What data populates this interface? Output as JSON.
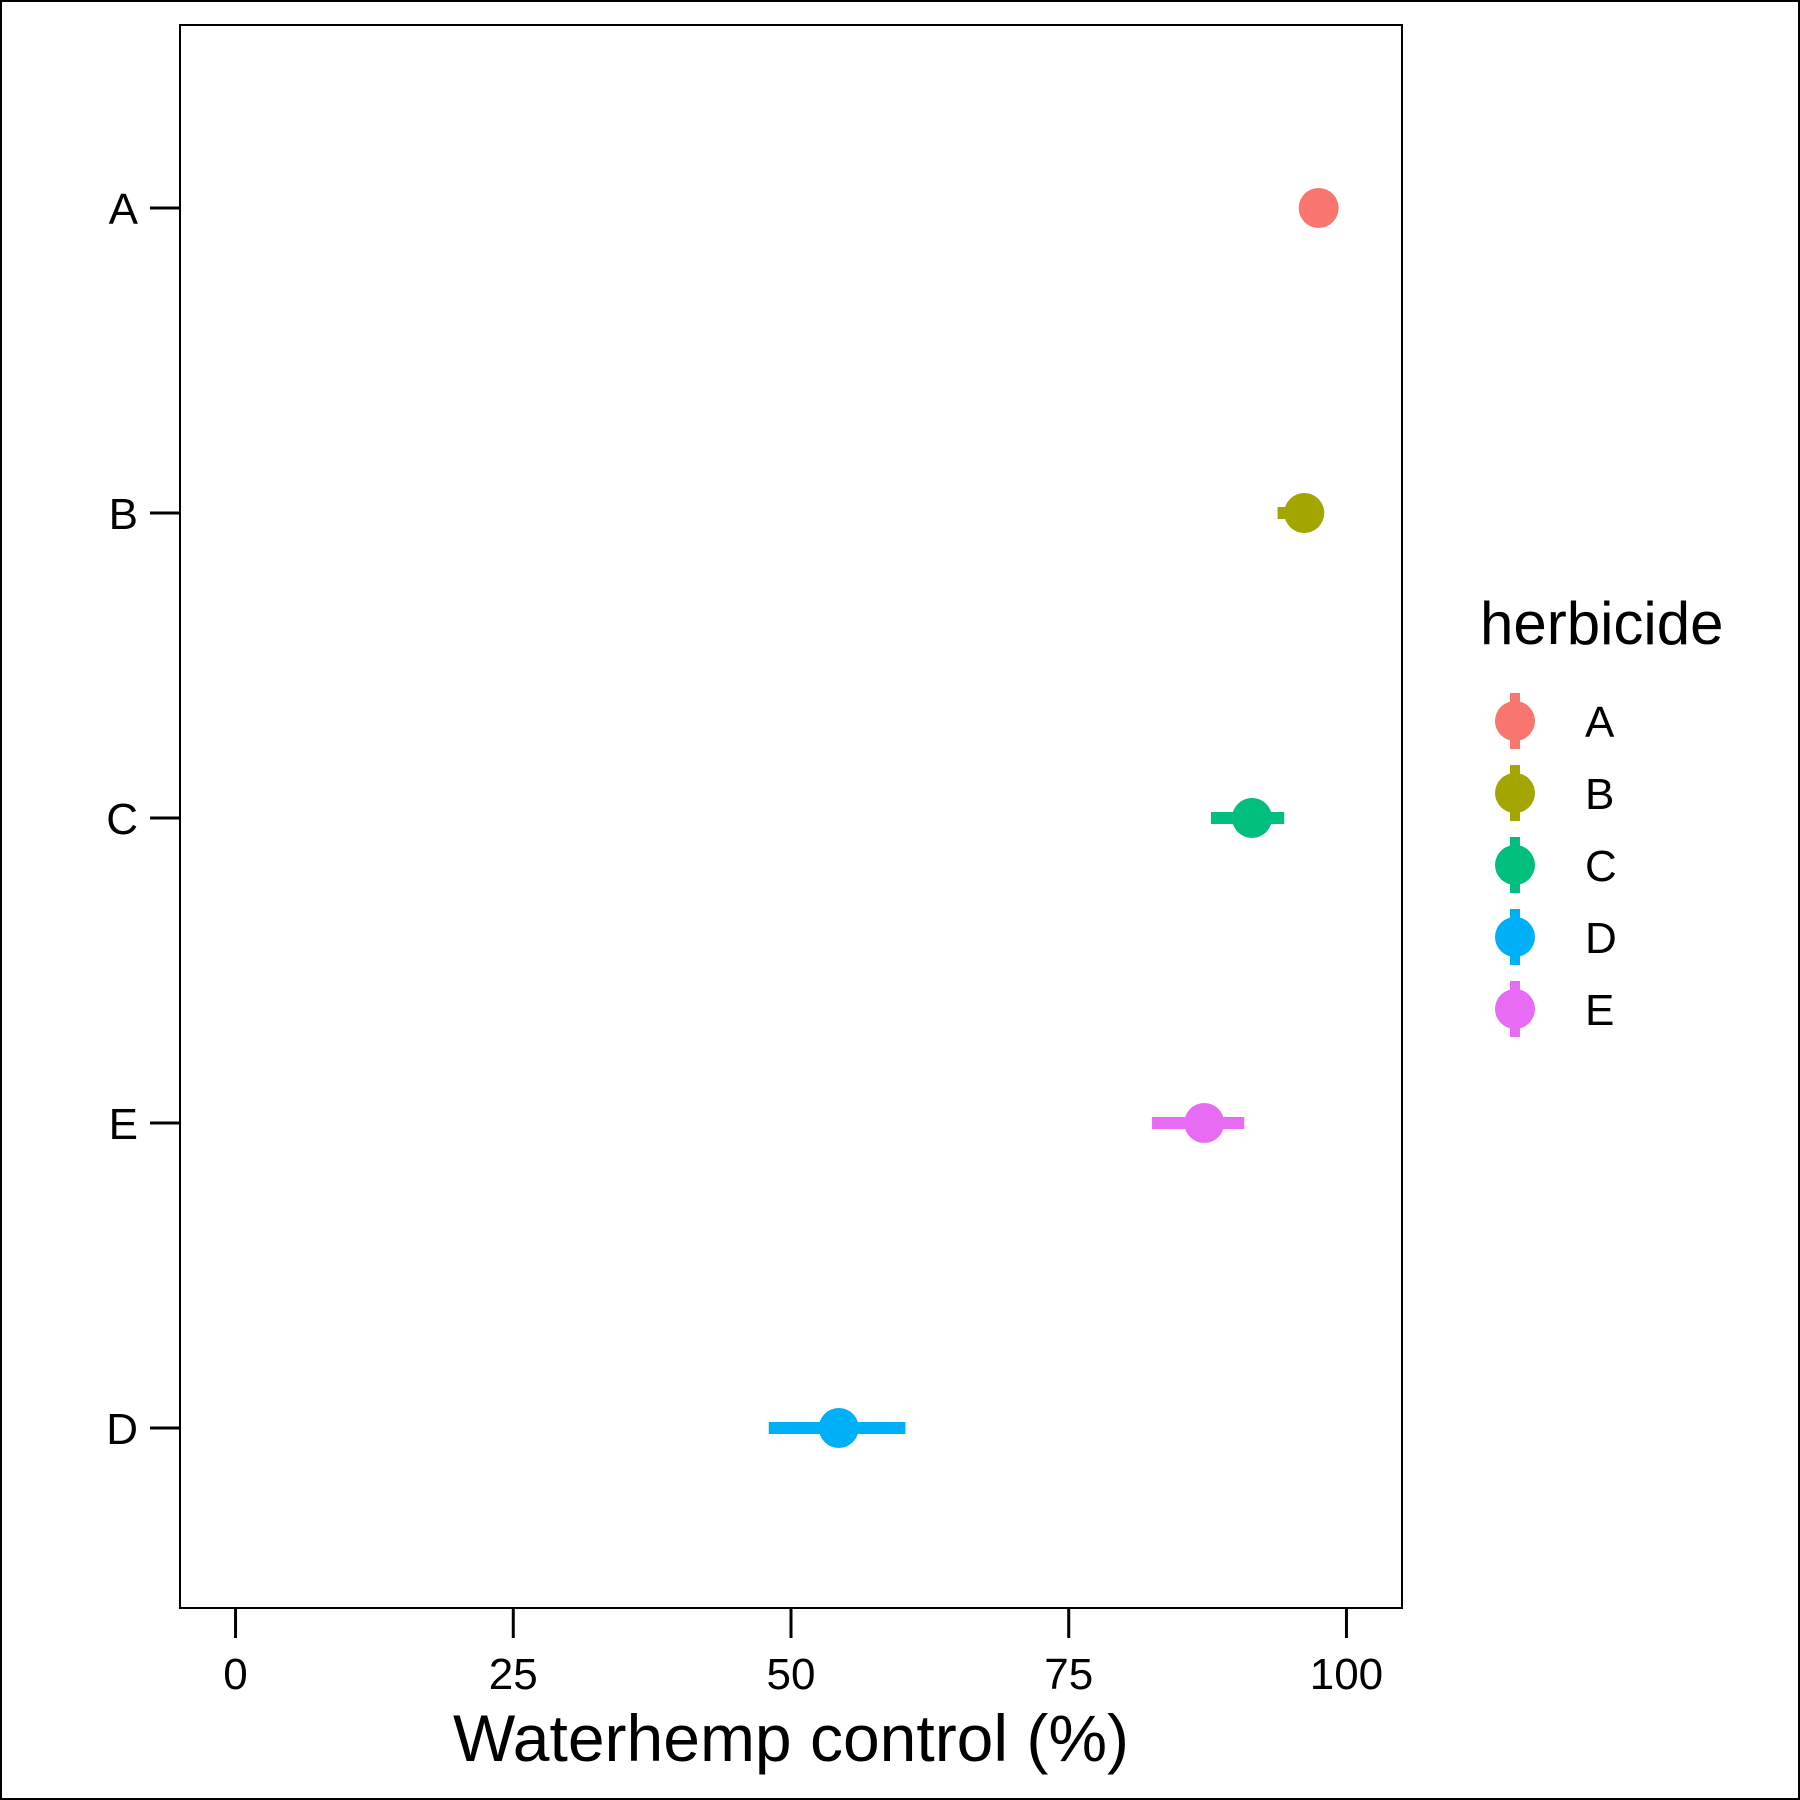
{
  "chart_data": {
    "type": "scatter",
    "xlabel": "Waterhemp control (%)",
    "ylabel": "",
    "title": "",
    "xlim": [
      -5,
      105
    ],
    "xticks": [
      0,
      25,
      50,
      75,
      100
    ],
    "xtick_labels": [
      "0",
      "25",
      "50",
      "75",
      "100"
    ],
    "categories": [
      "A",
      "B",
      "C",
      "E",
      "D"
    ],
    "grid": false,
    "legend": {
      "title": "herbicide",
      "position": "right",
      "entries": [
        "A",
        "B",
        "C",
        "D",
        "E"
      ]
    },
    "series": [
      {
        "name": "A",
        "category": "A",
        "x": 97.5,
        "xmin": 95.8,
        "xmax": 97.5,
        "color": "#F8766D"
      },
      {
        "name": "B",
        "category": "B",
        "x": 96.2,
        "xmin": 93.8,
        "xmax": 96.2,
        "color": "#A3A500"
      },
      {
        "name": "C",
        "category": "C",
        "x": 91.5,
        "xmin": 87.8,
        "xmax": 94.4,
        "color": "#00BF7D"
      },
      {
        "name": "D",
        "category": "D",
        "x": 54.3,
        "xmin": 48.0,
        "xmax": 60.3,
        "color": "#00B0F6"
      },
      {
        "name": "E",
        "category": "E",
        "x": 87.2,
        "xmin": 82.5,
        "xmax": 90.8,
        "color": "#E76BF3"
      }
    ]
  }
}
